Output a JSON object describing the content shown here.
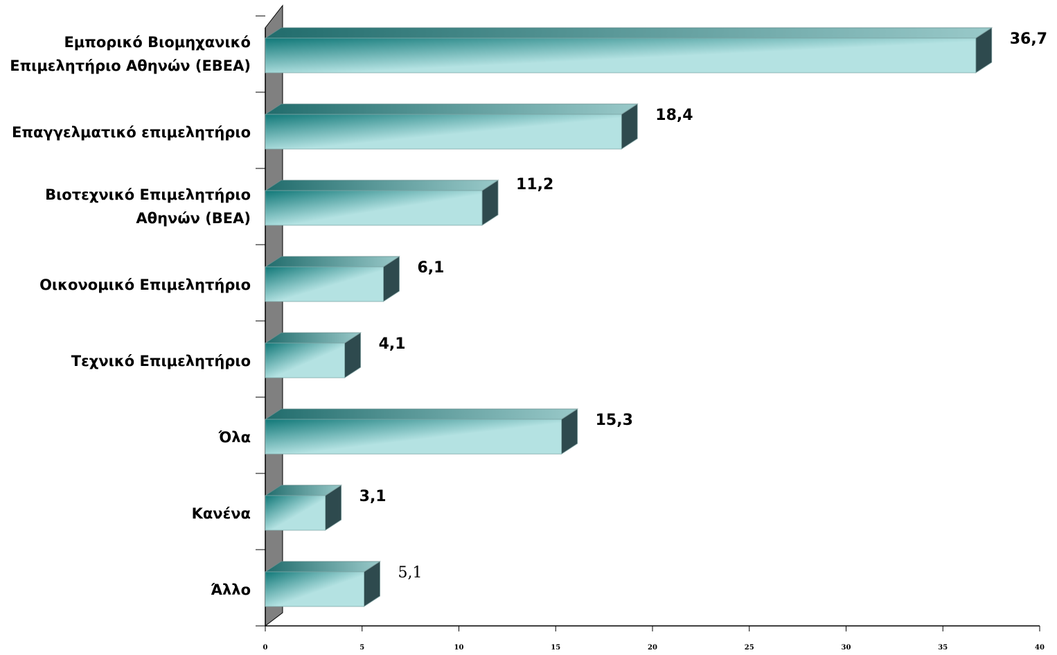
{
  "chart_data": {
    "type": "bar",
    "orientation": "horizontal",
    "style": "3d",
    "categories": [
      [
        "Εμπορικό Βιομηχανικό",
        "Επιμελητήριο Αθηνών (ΕΒΕΑ)"
      ],
      [
        "Επαγγελματικό επιμελητήριο"
      ],
      [
        "Βιοτεχνικό Επιμελητήριο",
        "Αθηνών (ΒΕΑ)"
      ],
      [
        "Οικονομικό Επιμελητήριο"
      ],
      [
        "Τεχνικό Επιμελητήριο"
      ],
      [
        "Όλα"
      ],
      [
        "Κανένα"
      ],
      [
        "Άλλο"
      ]
    ],
    "values": [
      36.7,
      18.4,
      11.2,
      6.1,
      4.1,
      15.3,
      3.1,
      5.1
    ],
    "value_labels": [
      "36,7",
      "18,4",
      "11,2",
      "6,1",
      "4,1",
      "15,3",
      "3,1",
      "5,1"
    ],
    "xlim": [
      0,
      40
    ],
    "x_ticks": [
      "0",
      "5",
      "10",
      "15",
      "20",
      "25",
      "30",
      "35",
      "40"
    ],
    "grid": false,
    "legend": "none",
    "colors": {
      "bar_light": "#b4e2e2",
      "bar_dark": "#117878",
      "bar_top_light": "#99c9c9",
      "bar_top_dark": "#216c6c",
      "bar_side": "#2e4a4e",
      "wall": "#808080",
      "axis": "#000000"
    }
  }
}
